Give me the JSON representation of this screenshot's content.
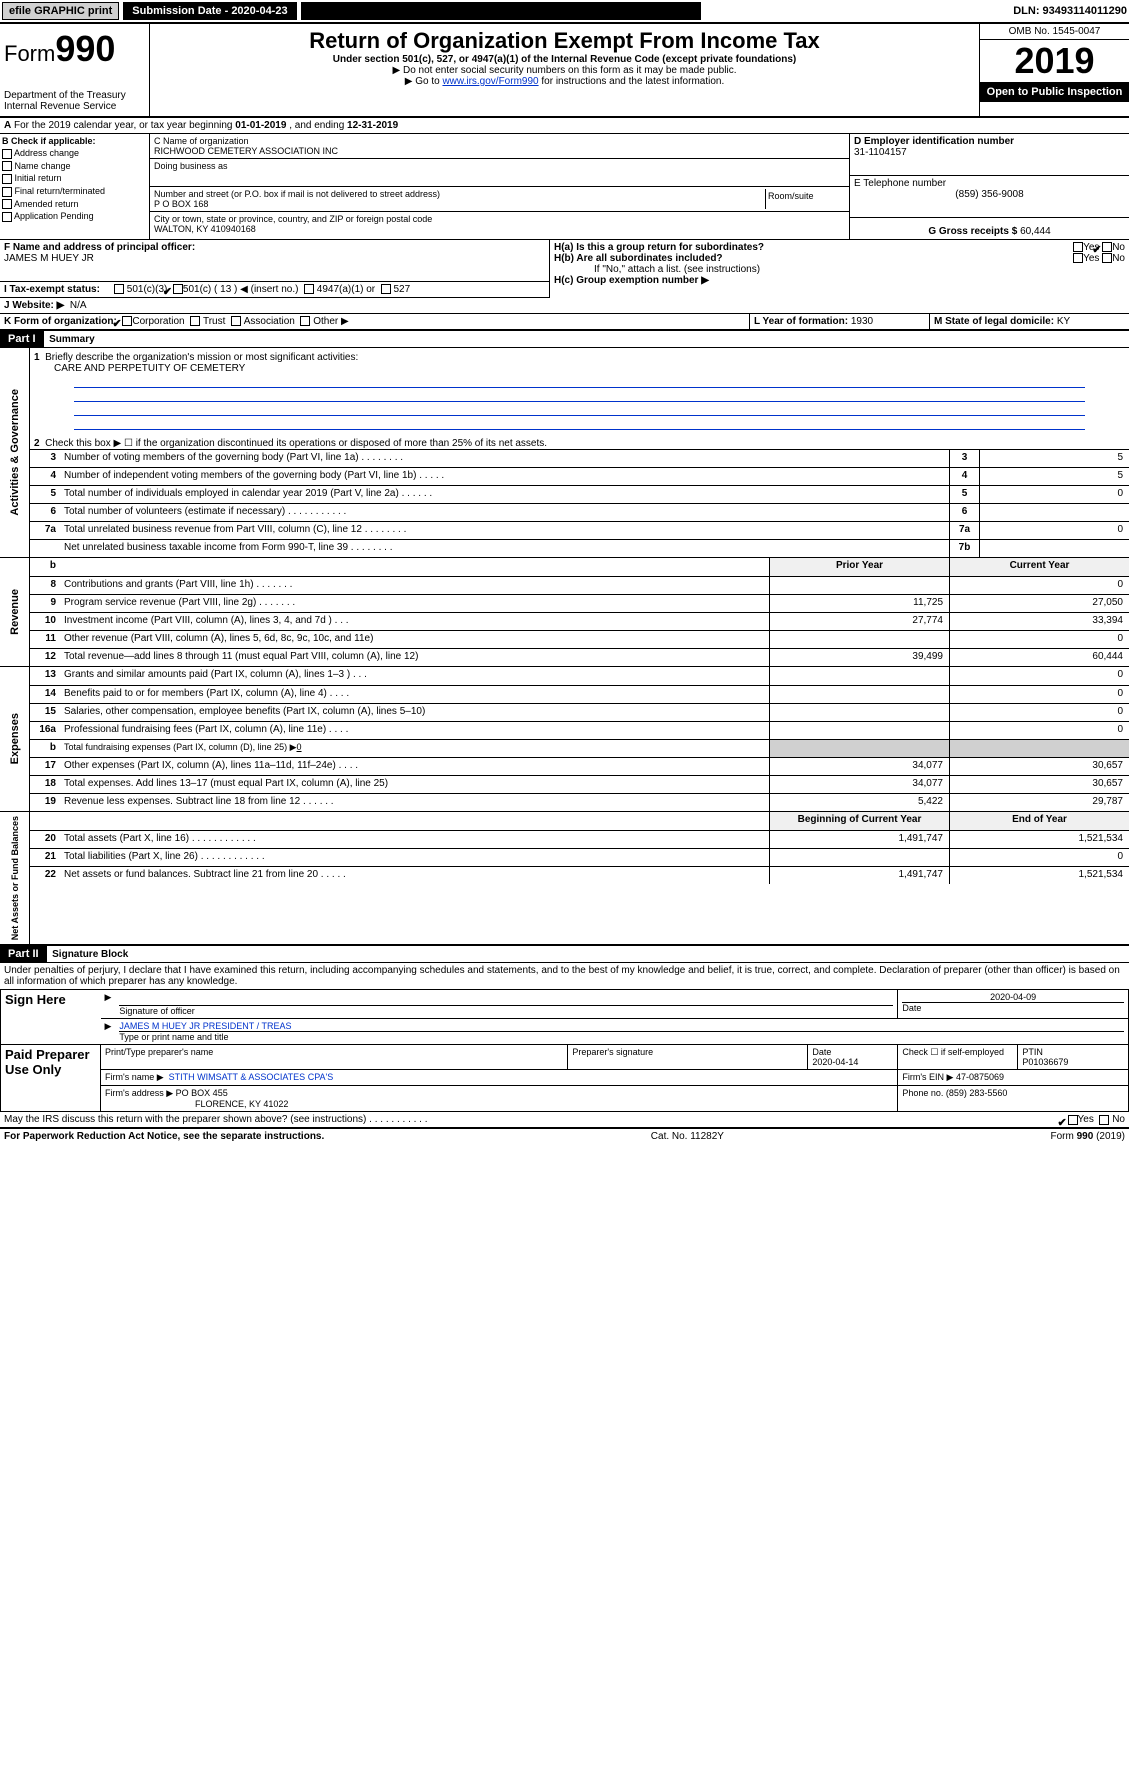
{
  "topbar": {
    "efile": "efile GRAPHIC print",
    "submission_label": "Submission Date - 2020-04-23",
    "dln": "DLN: 93493114011290"
  },
  "header": {
    "form_prefix": "Form",
    "form_number": "990",
    "dept": "Department of the Treasury",
    "irs": "Internal Revenue Service",
    "title": "Return of Organization Exempt From Income Tax",
    "subtitle": "Under section 501(c), 527, or 4947(a)(1) of the Internal Revenue Code (except private foundations)",
    "instr1": "▶ Do not enter social security numbers on this form as it may be made public.",
    "instr2_pre": "▶ Go to ",
    "instr2_link": "www.irs.gov/Form990",
    "instr2_post": " for instructions and the latest information.",
    "omb": "OMB No. 1545-0047",
    "year": "2019",
    "open": "Open to Public Inspection"
  },
  "line_a": {
    "text_pre": "For the 2019 calendar year, or tax year beginning ",
    "begin": "01-01-2019",
    "mid": " , and ending ",
    "end": "12-31-2019"
  },
  "box_b": {
    "label": "B Check if applicable:",
    "items": [
      "Address change",
      "Name change",
      "Initial return",
      "Final return/terminated",
      "Amended return",
      "Application Pending"
    ]
  },
  "box_c": {
    "label": "C Name of organization",
    "name": "RICHWOOD CEMETERY ASSOCIATION INC",
    "dba_label": "Doing business as",
    "addr_label": "Number and street (or P.O. box if mail is not delivered to street address)",
    "room_label": "Room/suite",
    "addr": "P O BOX 168",
    "city_label": "City or town, state or province, country, and ZIP or foreign postal code",
    "city": "WALTON, KY  410940168"
  },
  "box_d": {
    "label": "D Employer identification number",
    "value": "31-1104157"
  },
  "box_e": {
    "label": "E Telephone number",
    "value": "(859) 356-9008"
  },
  "box_g": {
    "label": "G Gross receipts $ ",
    "value": "60,444"
  },
  "box_f": {
    "label": "F Name and address of principal officer:",
    "value": "JAMES M HUEY JR"
  },
  "box_h": {
    "ha": "H(a)  Is this a group return for subordinates?",
    "hb": "H(b)  Are all subordinates included?",
    "hb_note": "If \"No,\" attach a list. (see instructions)",
    "hc": "H(c)  Group exemption number ▶",
    "yes": "Yes",
    "no": "No"
  },
  "box_i": {
    "label": "I   Tax-exempt status:",
    "o1": "501(c)(3)",
    "o2": "501(c) ( 13 ) ◀ (insert no.)",
    "o3": "4947(a)(1) or",
    "o4": "527"
  },
  "box_j": {
    "label": "J   Website: ▶",
    "value": "N/A"
  },
  "box_k": {
    "label": "K Form of organization:",
    "o1": "Corporation",
    "o2": "Trust",
    "o3": "Association",
    "o4": "Other ▶"
  },
  "box_l": {
    "label": "L Year of formation: ",
    "value": "1930"
  },
  "box_m": {
    "label": "M State of legal domicile: ",
    "value": "KY"
  },
  "part1": {
    "title": "Part I",
    "subtitle": "Summary",
    "sections": {
      "gov": "Activities & Governance",
      "rev": "Revenue",
      "exp": "Expenses",
      "net": "Net Assets or Fund Balances"
    },
    "l1": "Briefly describe the organization's mission or most significant activities:",
    "l1_val": "CARE AND PERPETUITY OF CEMETERY",
    "l2": "Check this box ▶ ☐  if the organization discontinued its operations or disposed of more than 25% of its net assets.",
    "lines_num": [
      {
        "n": "3",
        "d": "Number of voting members of the governing body (Part VI, line 1a)   .     .     .     .     .     .     .     .",
        "c": "3",
        "v": "5"
      },
      {
        "n": "4",
        "d": "Number of independent voting members of the governing body (Part VI, line 1b)   .     .     .     .     .",
        "c": "4",
        "v": "5"
      },
      {
        "n": "5",
        "d": "Total number of individuals employed in calendar year 2019 (Part V, line 2a)   .     .     .     .     .     .",
        "c": "5",
        "v": "0"
      },
      {
        "n": "6",
        "d": "Total number of volunteers (estimate if necessary)    .     .     .     .     .     .     .     .     .     .     .",
        "c": "6",
        "v": ""
      },
      {
        "n": "7a",
        "d": "Total unrelated business revenue from Part VIII, column (C), line 12   .     .     .     .     .     .     .     .",
        "c": "7a",
        "v": "0"
      },
      {
        "n": "",
        "d": "Net unrelated business taxable income from Form 990-T, line 39   .     .     .     .     .     .     .     .",
        "c": "7b",
        "v": ""
      }
    ],
    "col_headers": {
      "b": "b",
      "prior": "Prior Year",
      "current": "Current Year"
    },
    "lines_2col": [
      {
        "n": "8",
        "d": "Contributions and grants (Part VIII, line 1h)   .     .     .     .     .     .     .",
        "p": "",
        "c": "0"
      },
      {
        "n": "9",
        "d": "Program service revenue (Part VIII, line 2g)    .     .     .     .     .     .     .",
        "p": "11,725",
        "c": "27,050"
      },
      {
        "n": "10",
        "d": "Investment income (Part VIII, column (A), lines 3, 4, and 7d )   .     .     .",
        "p": "27,774",
        "c": "33,394"
      },
      {
        "n": "11",
        "d": "Other revenue (Part VIII, column (A), lines 5, 6d, 8c, 9c, 10c, and 11e)",
        "p": "",
        "c": "0"
      },
      {
        "n": "12",
        "d": "Total revenue—add lines 8 through 11 (must equal Part VIII, column (A), line 12)",
        "p": "39,499",
        "c": "60,444"
      },
      {
        "n": "13",
        "d": "Grants and similar amounts paid (Part IX, column (A), lines 1–3 )   .     .     .",
        "p": "",
        "c": "0"
      },
      {
        "n": "14",
        "d": "Benefits paid to or for members (Part IX, column (A), line 4)   .     .     .     .",
        "p": "",
        "c": "0"
      },
      {
        "n": "15",
        "d": "Salaries, other compensation, employee benefits (Part IX, column (A), lines 5–10)",
        "p": "",
        "c": "0"
      },
      {
        "n": "16a",
        "d": "Professional fundraising fees (Part IX, column (A), line 11e)   .     .     .     .",
        "p": "",
        "c": "0"
      },
      {
        "n": "17",
        "d": "Other expenses (Part IX, column (A), lines 11a–11d, 11f–24e)   .     .     .     .",
        "p": "34,077",
        "c": "30,657"
      },
      {
        "n": "18",
        "d": "Total expenses. Add lines 13–17 (must equal Part IX, column (A), line 25)",
        "p": "34,077",
        "c": "30,657"
      },
      {
        "n": "19",
        "d": "Revenue less expenses. Subtract line 18 from line 12   .     .     .     .     .     .",
        "p": "5,422",
        "c": "29,787"
      }
    ],
    "l16b": {
      "n": "b",
      "d": "Total fundraising expenses (Part IX, column (D), line 25) ▶",
      "v": "0"
    },
    "net_headers": {
      "begin": "Beginning of Current Year",
      "end": "End of Year"
    },
    "lines_net": [
      {
        "n": "20",
        "d": "Total assets (Part X, line 16)   .     .     .     .     .     .     .     .     .     .     .     .",
        "p": "1,491,747",
        "c": "1,521,534"
      },
      {
        "n": "21",
        "d": "Total liabilities (Part X, line 26)   .     .     .     .     .     .     .     .     .     .     .     .",
        "p": "",
        "c": "0"
      },
      {
        "n": "22",
        "d": "Net assets or fund balances. Subtract line 21 from line 20   .     .     .     .     .",
        "p": "1,491,747",
        "c": "1,521,534"
      }
    ]
  },
  "part2": {
    "title": "Part II",
    "subtitle": "Signature Block",
    "perjury": "Under penalties of perjury, I declare that I have examined this return, including accompanying schedules and statements, and to the best of my knowledge and belief, it is true, correct, and complete. Declaration of preparer (other than officer) is based on all information of which preparer has any knowledge.",
    "sign_here": "Sign Here",
    "sig_officer": "Signature of officer",
    "sig_date": "2020-04-09",
    "date_label": "Date",
    "officer_name": "JAMES M HUEY JR  PRESIDENT / TREAS",
    "officer_label": "Type or print name and title",
    "paid": "Paid Preparer Use Only",
    "prep_name_label": "Print/Type preparer's name",
    "prep_sig_label": "Preparer's signature",
    "prep_date_label": "Date",
    "prep_date": "2020-04-14",
    "check_label": "Check ☐ if self-employed",
    "ptin_label": "PTIN",
    "ptin": "P01036679",
    "firm_name_label": "Firm's name    ▶",
    "firm_name": "STITH WIMSATT & ASSOCIATES CPA'S",
    "firm_ein_label": "Firm's EIN ▶",
    "firm_ein": "47-0875069",
    "firm_addr_label": "Firm's address ▶",
    "firm_addr1": "PO BOX 455",
    "firm_addr2": "FLORENCE, KY  41022",
    "phone_label": "Phone no. ",
    "phone": "(859) 283-5560",
    "discuss": "May the IRS discuss this return with the preparer shown above? (see instructions)    .     .     .     .     .     .     .     .     .     .     .",
    "yes": "Yes",
    "no": "No"
  },
  "footer": {
    "left": "For Paperwork Reduction Act Notice, see the separate instructions.",
    "mid": "Cat. No. 11282Y",
    "right": "Form 990 (2019)"
  }
}
